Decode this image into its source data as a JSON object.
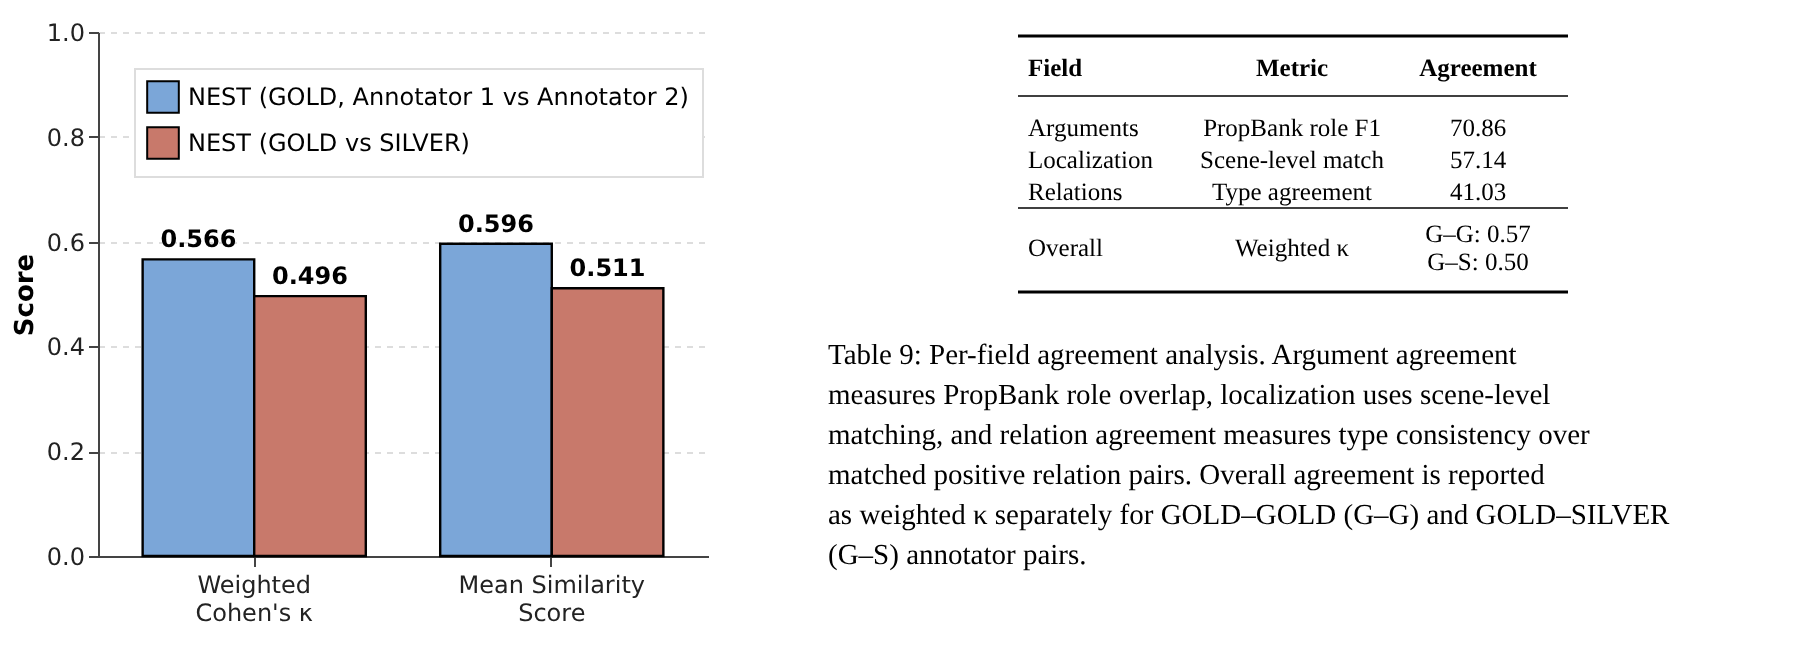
{
  "chart_data": [
    {
      "type": "bar",
      "ylabel": "Score",
      "categories": [
        "Weighted\nCohen's κ",
        "Mean Similarity\nScore"
      ],
      "series": [
        {
          "name": "NEST (GOLD, Annotator 1 vs Annotator 2)",
          "color": "#7ba6d8",
          "values": [
            0.566,
            0.596
          ]
        },
        {
          "name": "NEST (GOLD vs SILVER)",
          "color": "#c8796b",
          "values": [
            0.496,
            0.511
          ]
        }
      ],
      "ylim": [
        0,
        1
      ],
      "yticks": [
        {
          "value": 0,
          "label": "0.0"
        },
        0.2,
        0.4,
        0.6,
        0.8,
        {
          "value": 1,
          "label": "1.0"
        }
      ],
      "grid": "y",
      "legend": "top left",
      "data_labels": true
    },
    {
      "type": "other",
      "annotations": [
        "Field",
        "Metric",
        "Agreement",
        "Arguments",
        "PropBank role F1",
        "70.86",
        "Localization",
        "Scene-level match",
        "57.14",
        "Relations",
        "Type agreement",
        "41.03",
        "Overall",
        "Weighted κ",
        "G–G: 0.57\nG–S: 0.50",
        "Table 9: Per-field agreement analysis. Argument agreement measures PropBank role overlap, localization uses scene-level matching, and relation agreement measures type consistency over matched positive relation pairs. Overall agreement is reported as weighted κ separately for GOLD–GOLD (G–G) and GOLD–SILVER (G–S) annotator pairs."
      ]
    }
  ]
}
